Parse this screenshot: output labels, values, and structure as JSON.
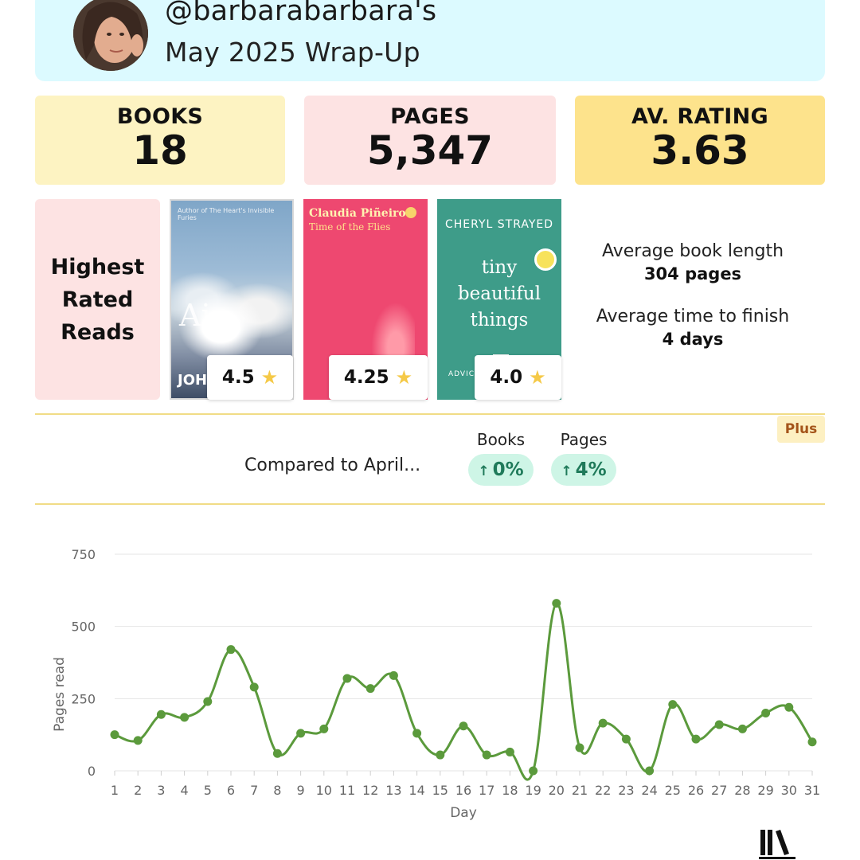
{
  "header": {
    "handle": "@barbarabarbara's",
    "subtitle": "May 2025 Wrap-Up"
  },
  "stats": {
    "books_label": "BOOKS",
    "books_value": "18",
    "pages_label": "PAGES",
    "pages_value": "5,347",
    "rating_label": "AV. RATING",
    "rating_value": "3.63"
  },
  "highest_rated": {
    "heading_line1": "Highest",
    "heading_line2": "Rated",
    "heading_line3": "Reads",
    "books": [
      {
        "cover_tagline": "Author of The Heart's Invisible Furies",
        "cover_title": "Air",
        "cover_author": "JOH",
        "rating": "4.5"
      },
      {
        "cover_author": "Claudia Piñeiro",
        "cover_title": "Time of the Flies",
        "rating": "4.25"
      },
      {
        "cover_author": "CHERYL STRAYED",
        "cover_title_1": "tiny",
        "cover_title_2": "beautiful",
        "cover_title_3": "things",
        "cover_bottom": "ADVIC",
        "rating": "4.0"
      }
    ]
  },
  "averages": {
    "length_label": "Average book length",
    "length_value": "304 pages",
    "finish_label": "Average time to finish",
    "finish_value": "4 days"
  },
  "plus_badge": "Plus",
  "comparison": {
    "text": "Compared to April...",
    "books_label": "Books",
    "books_change": "0%",
    "pages_label": "Pages",
    "pages_change": "4%"
  },
  "colors": {
    "line": "#5b9a3c",
    "accent_pill": "#cef5e6",
    "divider": "#f1dc86"
  },
  "chart_data": {
    "type": "line",
    "xlabel": "Day",
    "ylabel": "Pages read",
    "ylim": [
      0,
      750
    ],
    "yticks": [
      0,
      250,
      500,
      750
    ],
    "x": [
      1,
      2,
      3,
      4,
      5,
      6,
      7,
      8,
      9,
      10,
      11,
      12,
      13,
      14,
      15,
      16,
      17,
      18,
      19,
      20,
      21,
      22,
      23,
      24,
      25,
      26,
      27,
      28,
      29,
      30,
      31
    ],
    "values": [
      125,
      105,
      195,
      185,
      240,
      420,
      290,
      60,
      130,
      145,
      320,
      285,
      330,
      130,
      55,
      155,
      55,
      65,
      0,
      580,
      80,
      165,
      110,
      0,
      230,
      110,
      160,
      145,
      200,
      220,
      100
    ],
    "grid": true
  }
}
